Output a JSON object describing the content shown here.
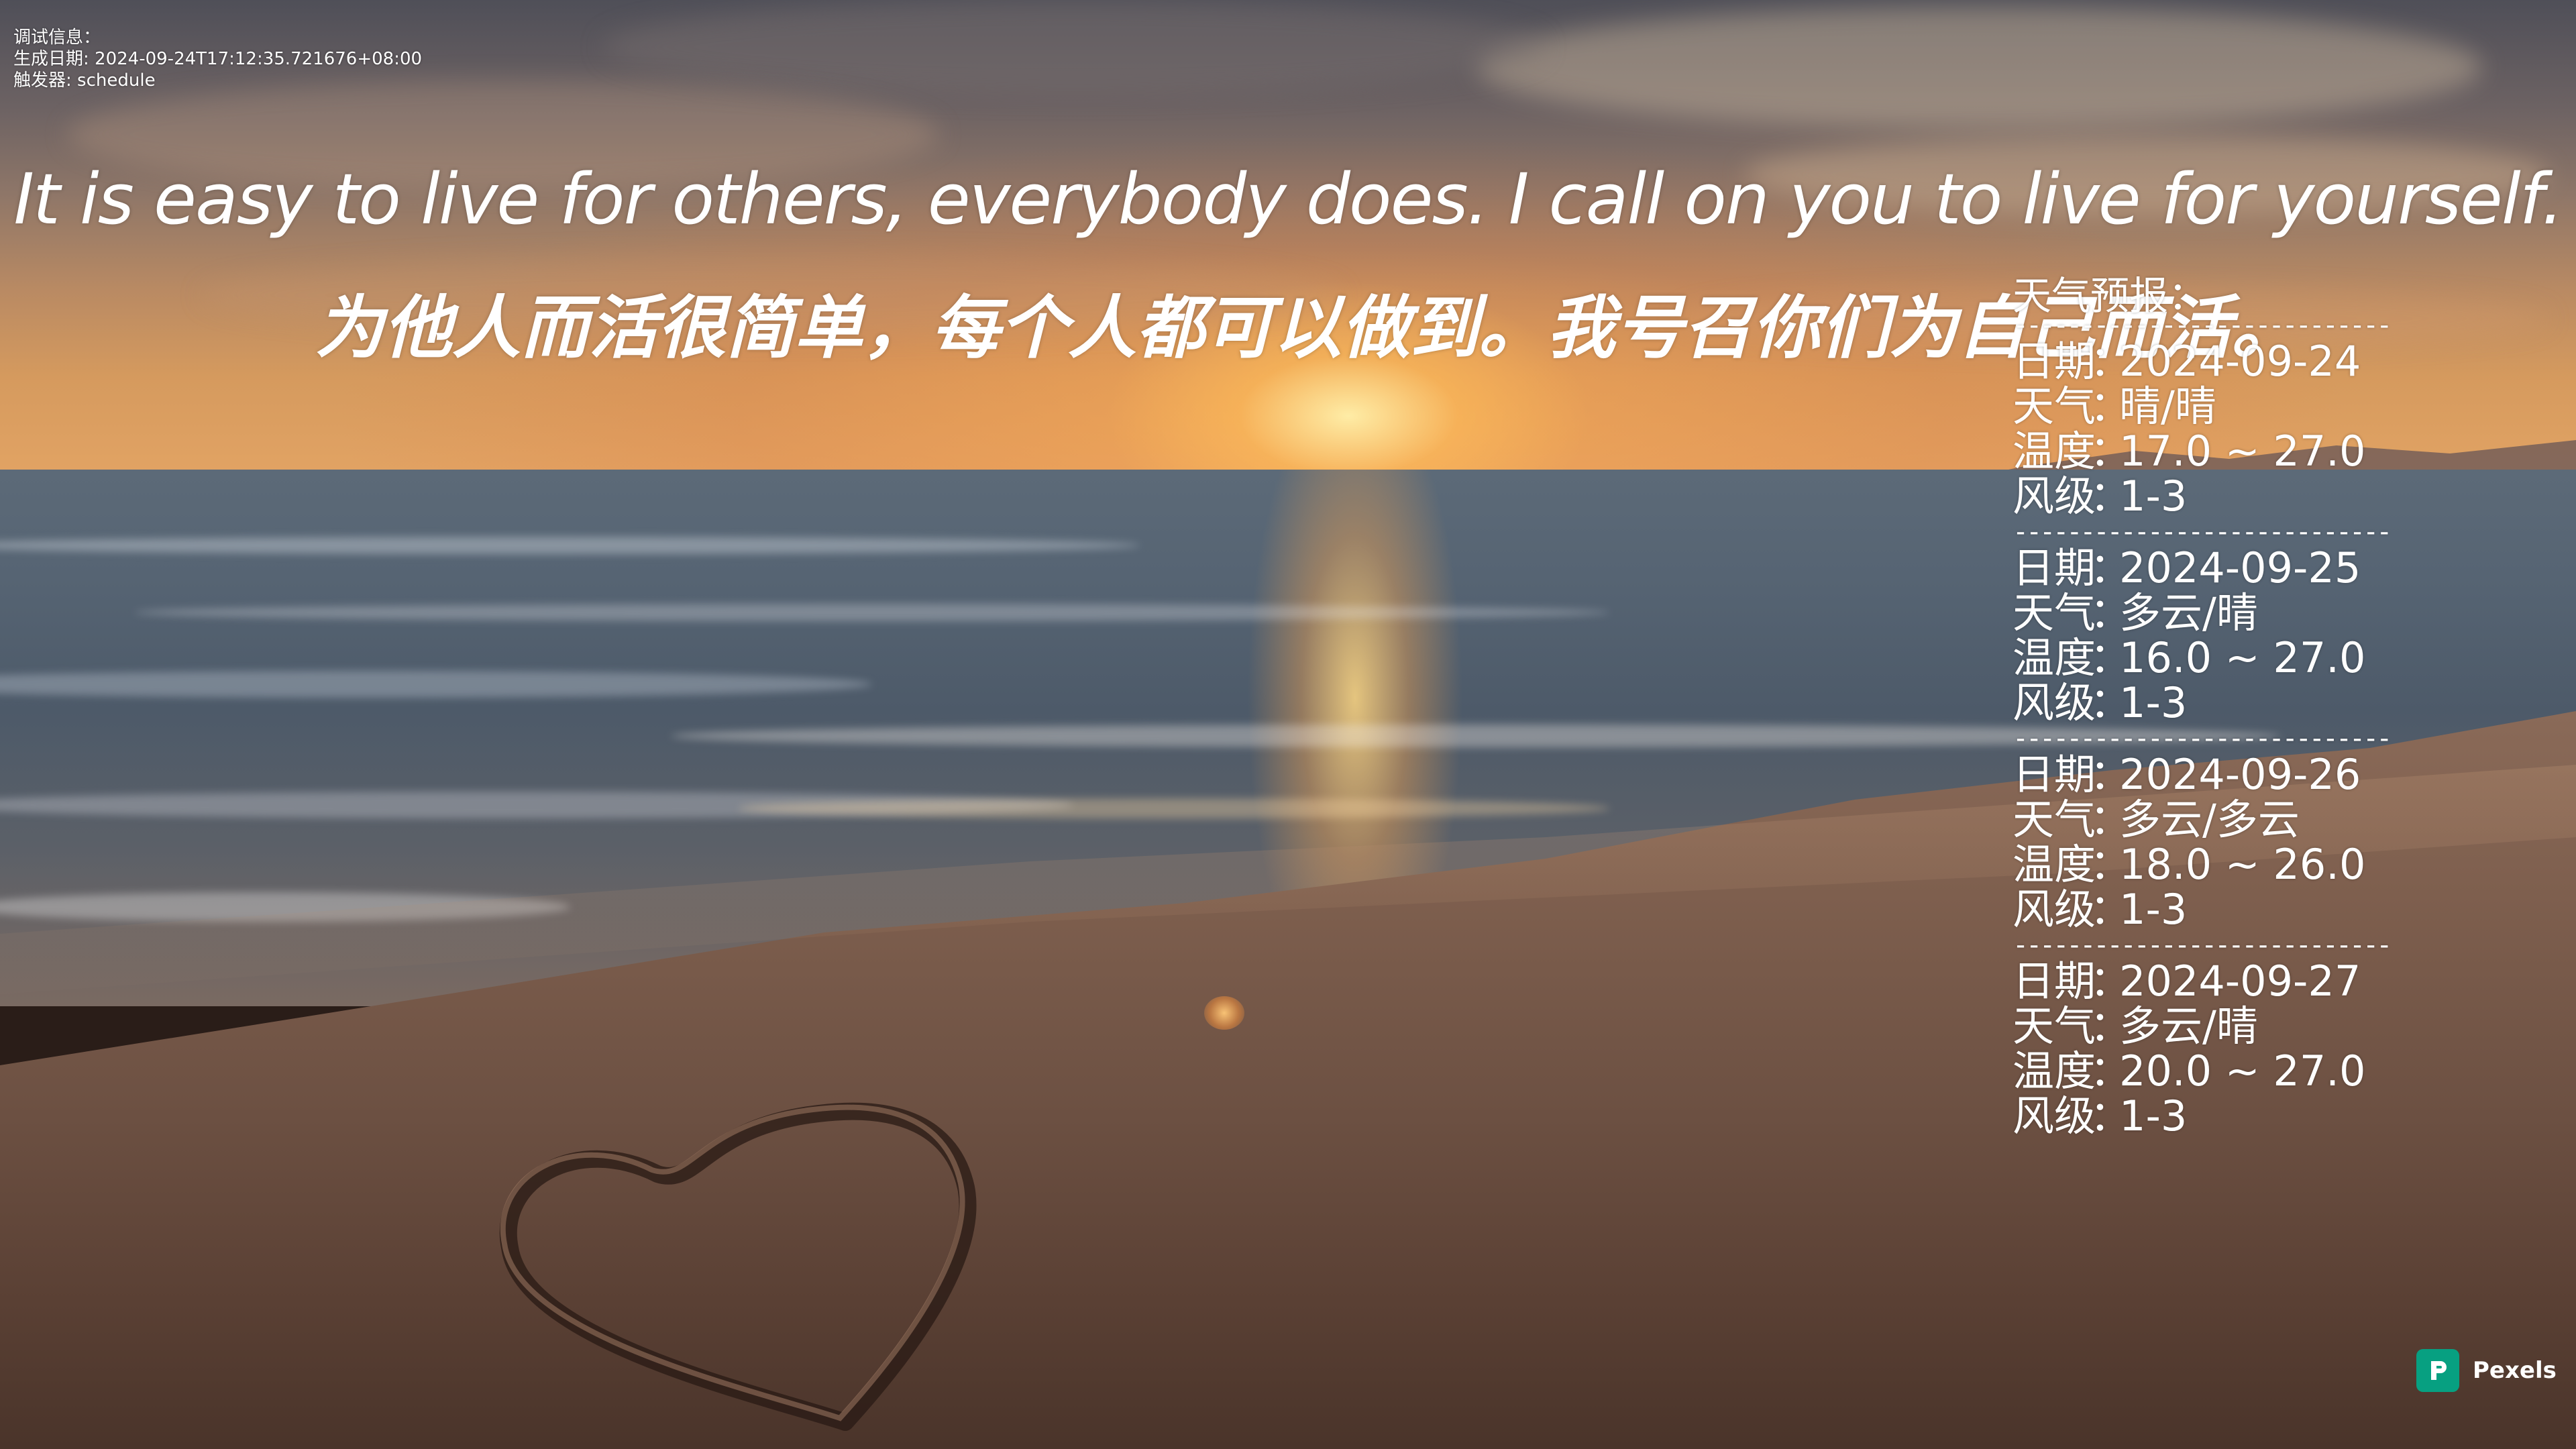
{
  "debug": {
    "title": "调试信息：",
    "generated_label": "生成日期",
    "generated_value": "2024-09-24T17:12:35.721676+08:00",
    "trigger_label": "触发器",
    "trigger_value": "schedule"
  },
  "quote": {
    "english": "It is easy to live for others, everybody does. I call on you to live for yourself.",
    "chinese": "为他人而活很简单，每个人都可以做到。我号召你们为自己而活。"
  },
  "weather": {
    "title": "天气预报：",
    "divider": "----------------------------",
    "labels": {
      "date": "日期",
      "weather": "天气",
      "temperature": "温度",
      "wind": "风级"
    },
    "separator": "：",
    "days": [
      {
        "date": "2024-09-24",
        "weather": "晴/晴",
        "temperature": "17.0 ~ 27.0",
        "wind": "1-3"
      },
      {
        "date": "2024-09-25",
        "weather": "多云/晴",
        "temperature": "16.0 ~ 27.0",
        "wind": "1-3"
      },
      {
        "date": "2024-09-26",
        "weather": "多云/多云",
        "temperature": "18.0 ~ 26.0",
        "wind": "1-3"
      },
      {
        "date": "2024-09-27",
        "weather": "多云/晴",
        "temperature": "20.0 ~ 27.0",
        "wind": "1-3"
      }
    ]
  },
  "watermark": {
    "label": "Pexels",
    "icon": "pexels-logo-icon",
    "color": "#07a081"
  }
}
